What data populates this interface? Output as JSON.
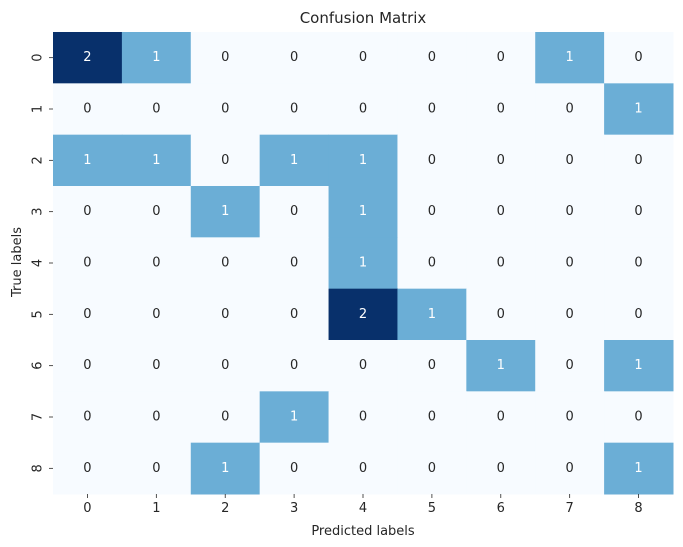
{
  "chart_data": {
    "type": "heatmap",
    "title": "Confusion Matrix",
    "xlabel": "Predicted labels",
    "ylabel": "True labels",
    "x_categories": [
      "0",
      "1",
      "2",
      "3",
      "4",
      "5",
      "6",
      "7",
      "8"
    ],
    "y_categories": [
      "0",
      "1",
      "2",
      "3",
      "4",
      "5",
      "6",
      "7",
      "8"
    ],
    "values": [
      [
        2,
        1,
        0,
        0,
        0,
        0,
        0,
        1,
        0
      ],
      [
        0,
        0,
        0,
        0,
        0,
        0,
        0,
        0,
        1
      ],
      [
        1,
        1,
        0,
        1,
        1,
        0,
        0,
        0,
        0
      ],
      [
        0,
        0,
        1,
        0,
        1,
        0,
        0,
        0,
        0
      ],
      [
        0,
        0,
        0,
        0,
        1,
        0,
        0,
        0,
        0
      ],
      [
        0,
        0,
        0,
        0,
        2,
        1,
        0,
        0,
        0
      ],
      [
        0,
        0,
        0,
        0,
        0,
        0,
        1,
        0,
        1
      ],
      [
        0,
        0,
        0,
        1,
        0,
        0,
        0,
        0,
        0
      ],
      [
        0,
        0,
        1,
        0,
        0,
        0,
        0,
        0,
        1
      ]
    ],
    "value_range": [
      0,
      2
    ],
    "colormap": "Blues",
    "colorbar": false,
    "annotations": true,
    "colors": {
      "low": "#f7fbff",
      "mid": "#6baed6",
      "high": "#08306b",
      "text_dark": "#262626",
      "text_light": "#ffffff"
    }
  }
}
